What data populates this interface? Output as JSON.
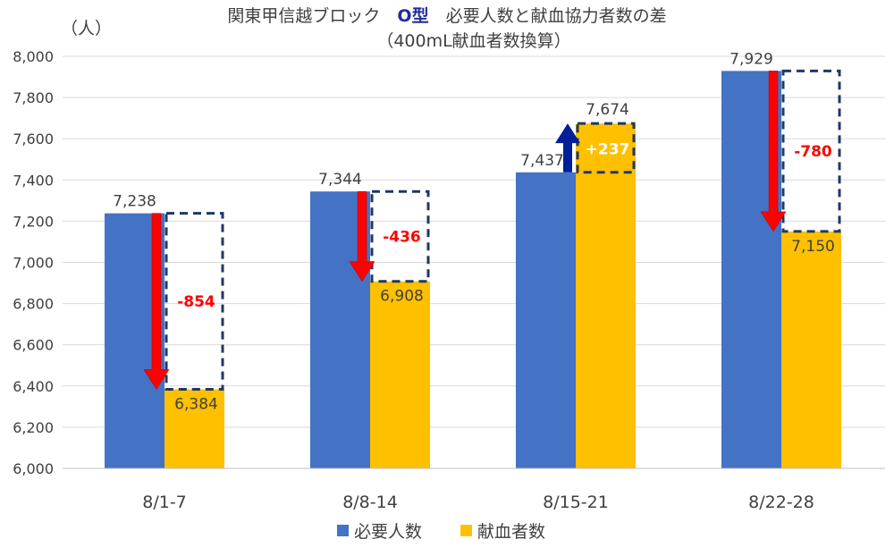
{
  "chart_data": {
    "type": "bar",
    "title_parts": [
      "関東甲信越ブロック　",
      "O型",
      "　必要人数と献血協力者数の差"
    ],
    "subtitle": "（400mL献血者数換算）",
    "ylabel": "（人）",
    "ylim": [
      6000,
      8000
    ],
    "yticks": [
      6000,
      6200,
      6400,
      6600,
      6800,
      7000,
      7200,
      7400,
      7600,
      7800,
      8000
    ],
    "ytick_labels": [
      "6,000",
      "6,200",
      "6,400",
      "6,600",
      "6,800",
      "7,000",
      "7,200",
      "7,400",
      "7,600",
      "7,800",
      "8,000"
    ],
    "categories": [
      "8/1-7",
      "8/8-14",
      "8/15-21",
      "8/22-28"
    ],
    "series": [
      {
        "name": "必要人数",
        "color": "#4472c4",
        "values": [
          7238,
          7344,
          7437,
          7929
        ],
        "labels": [
          "7,238",
          "7,344",
          "7,437",
          "7,929"
        ]
      },
      {
        "name": "献血者数",
        "color": "#ffc000",
        "values": [
          6384,
          6908,
          7674,
          7150
        ],
        "labels": [
          "6,384",
          "6,908",
          "7,674",
          "7,150"
        ]
      }
    ],
    "differences": [
      "-854",
      "-436",
      "+237",
      "-780"
    ],
    "colors": {
      "negative": "#ff0000",
      "positive": "#001f99",
      "box": "#1f3864"
    },
    "legend_position": "bottom"
  }
}
